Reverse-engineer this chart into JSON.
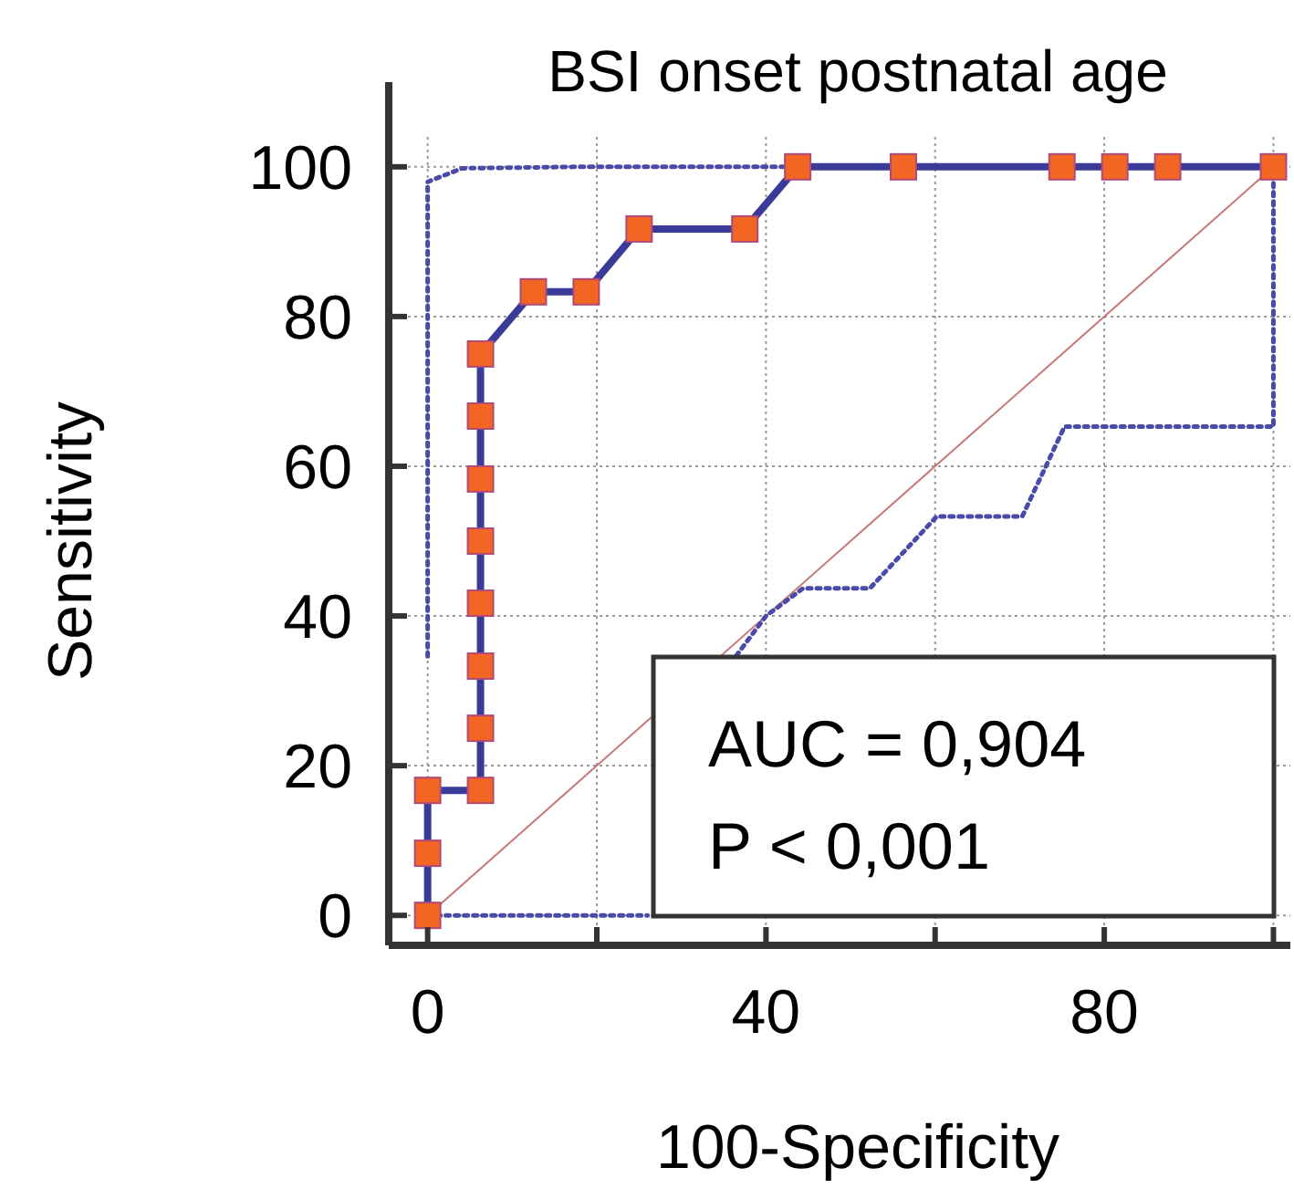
{
  "chart_data": {
    "type": "line",
    "title": "BSI onset postnatal age",
    "xlabel": "100-Specificity",
    "ylabel": "Sensitivity",
    "xlim": [
      -4.6,
      102
    ],
    "ylim": [
      -4,
      104
    ],
    "xticks": [
      0,
      {
        "value": 20,
        "label": null
      },
      40,
      {
        "value": 60,
        "label": null
      },
      80,
      {
        "value": 100,
        "label": null
      }
    ],
    "yticks": [
      0,
      20,
      40,
      60,
      80,
      100
    ],
    "grid": true,
    "annotations": [
      "AUC = 0,904",
      "P < 0,001"
    ],
    "series": [
      {
        "color": "#c87878",
        "line_style": "solid",
        "x": [
          0,
          25,
          50,
          75,
          100
        ],
        "values": [
          0,
          25,
          50,
          75,
          100
        ]
      },
      {
        "color": "#4a4aa8",
        "line_style": "dotted",
        "x": [
          0,
          0,
          4.1,
          17.8,
          100
        ],
        "values": [
          34.6,
          98,
          99.8,
          100,
          100
        ]
      },
      {
        "color": "#4a4aa8",
        "line_style": "dotted",
        "x": [
          0,
          26,
          35.4,
          36.5,
          40,
          44.4,
          52.3,
          60.2,
          70.3,
          75.3,
          100,
          100
        ],
        "values": [
          0,
          0,
          null,
          34.7,
          40,
          43.7,
          43.7,
          53.3,
          53.3,
          65.3,
          65.3,
          100
        ]
      },
      {
        "color": "#3a3a98",
        "line_style": "solid",
        "marker": "square",
        "x": [
          0,
          0,
          0,
          6.25,
          6.25,
          6.25,
          6.25,
          6.25,
          6.25,
          6.25,
          6.25,
          12.5,
          18.75,
          25,
          37.5,
          43.75,
          56.25,
          75,
          81.25,
          87.5,
          100
        ],
        "values": [
          0,
          8.3,
          16.7,
          16.7,
          25,
          33.3,
          41.7,
          50,
          58.3,
          66.7,
          75,
          83.3,
          83.3,
          91.7,
          91.7,
          100,
          100,
          100,
          100,
          100,
          100
        ]
      }
    ]
  }
}
